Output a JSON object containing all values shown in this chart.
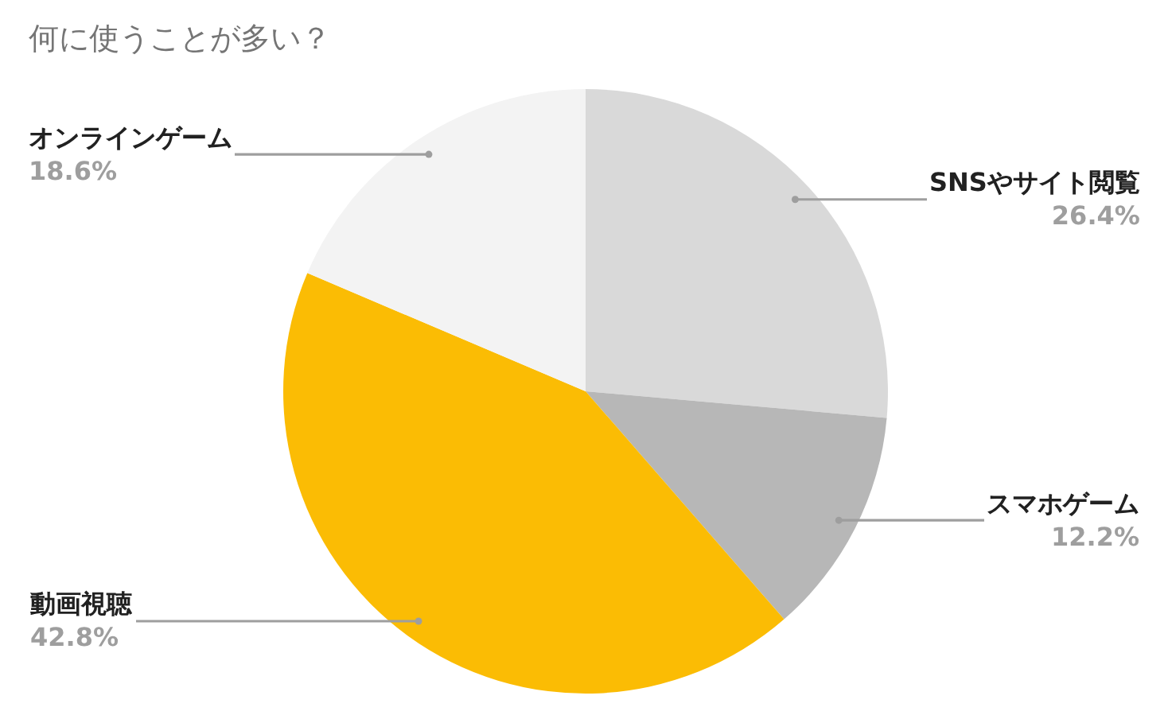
{
  "chart_data": {
    "type": "pie",
    "title": "何に使うことが多い？",
    "categories": [
      "SNSやサイト閲覧",
      "スマホゲーム",
      "動画視聴",
      "オンラインゲーム"
    ],
    "values": [
      26.4,
      12.2,
      42.8,
      18.6
    ],
    "value_labels": [
      "26.4%",
      "12.2%",
      "42.8%",
      "18.6%"
    ],
    "colors": [
      "#d9d9d9",
      "#b7b7b7",
      "#fbbc04",
      "#f3f3f3"
    ],
    "legend": false
  }
}
